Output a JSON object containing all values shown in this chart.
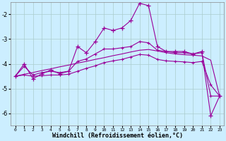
{
  "x": [
    0,
    1,
    2,
    3,
    4,
    5,
    6,
    7,
    8,
    9,
    10,
    11,
    12,
    13,
    14,
    15,
    16,
    17,
    18,
    19,
    20,
    21,
    22,
    23
  ],
  "windchill": [
    -4.5,
    -4.0,
    -4.6,
    -4.4,
    -4.25,
    -4.4,
    -4.3,
    -3.3,
    -3.55,
    -3.1,
    -2.55,
    -2.65,
    -2.55,
    -2.25,
    -1.55,
    -1.65,
    -3.3,
    -3.5,
    -3.5,
    -3.5,
    -3.6,
    -3.5,
    -6.1,
    -5.3
  ],
  "smooth1": [
    -4.5,
    -4.1,
    -4.45,
    -4.35,
    -4.3,
    -4.35,
    -4.3,
    -3.9,
    -3.8,
    -3.6,
    -3.4,
    -3.4,
    -3.35,
    -3.3,
    -3.1,
    -3.15,
    -3.45,
    -3.5,
    -3.55,
    -3.55,
    -3.6,
    -3.55,
    -5.3,
    -5.3
  ],
  "smooth2": [
    -4.5,
    -4.45,
    -4.5,
    -4.48,
    -4.45,
    -4.45,
    -4.42,
    -4.3,
    -4.18,
    -4.08,
    -3.95,
    -3.88,
    -3.82,
    -3.72,
    -3.62,
    -3.65,
    -3.82,
    -3.88,
    -3.9,
    -3.92,
    -3.95,
    -3.9,
    -4.85,
    -5.3
  ],
  "trend": [
    -4.5,
    -4.42,
    -4.35,
    -4.27,
    -4.2,
    -4.12,
    -4.05,
    -3.97,
    -3.9,
    -3.82,
    -3.75,
    -3.67,
    -3.6,
    -3.52,
    -3.45,
    -3.42,
    -3.48,
    -3.55,
    -3.6,
    -3.63,
    -3.65,
    -3.68,
    -3.85,
    -5.3
  ],
  "color": "#990099",
  "background": "#cceeff",
  "grid_color": "#aacccc",
  "xlabel": "Windchill (Refroidissement éolien,°C)",
  "ylim": [
    -6.5,
    -1.5
  ],
  "xlim": [
    -0.5,
    23.5
  ],
  "yticks": [
    -6,
    -5,
    -4,
    -3,
    -2
  ],
  "xticks": [
    0,
    1,
    2,
    3,
    4,
    5,
    6,
    7,
    8,
    9,
    10,
    11,
    12,
    13,
    14,
    15,
    16,
    17,
    18,
    19,
    20,
    21,
    22,
    23
  ]
}
